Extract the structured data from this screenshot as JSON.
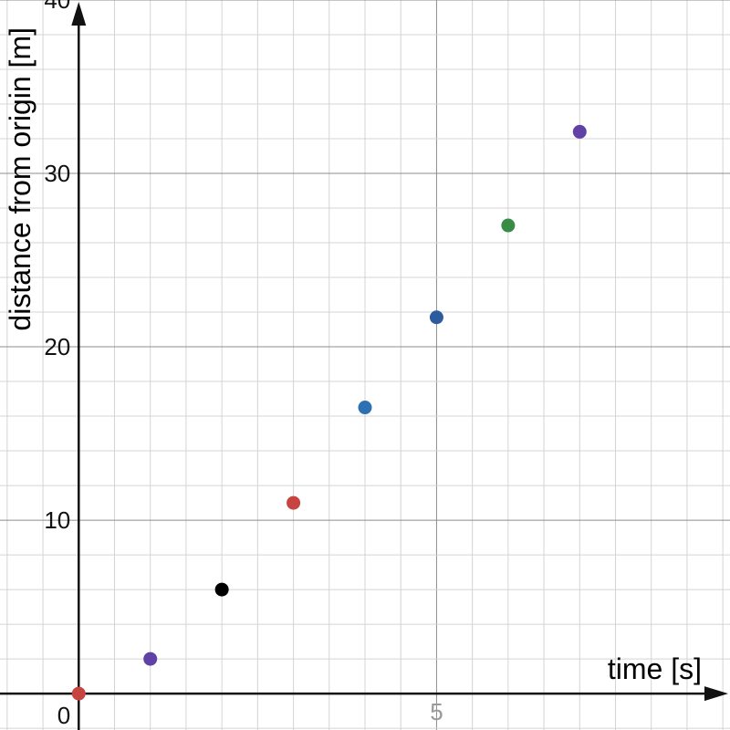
{
  "chart_data": {
    "type": "scatter",
    "title": "",
    "xlabel": "time [s]",
    "ylabel": "distance from origin [m]",
    "xlim": [
      -1.1,
      9.1
    ],
    "ylim": [
      -2.1,
      40
    ],
    "x_ticks": [
      {
        "value": 5,
        "label": "5"
      }
    ],
    "y_ticks": [
      {
        "value": 10,
        "label": "10"
      },
      {
        "value": 20,
        "label": "20"
      },
      {
        "value": 30,
        "label": "30"
      },
      {
        "value": 40,
        "label": "40"
      }
    ],
    "origin_label": "0",
    "grid": true,
    "points": [
      {
        "x": 0,
        "y": 0,
        "color": "#c74440"
      },
      {
        "x": 1,
        "y": 2,
        "color": "#6042a6"
      },
      {
        "x": 2,
        "y": 6,
        "color": "#000000"
      },
      {
        "x": 3,
        "y": 11,
        "color": "#c74440"
      },
      {
        "x": 4,
        "y": 16.5,
        "color": "#2d70b3"
      },
      {
        "x": 5,
        "y": 21.7,
        "color": "#2d5c9e"
      },
      {
        "x": 6,
        "y": 27,
        "color": "#388c46"
      },
      {
        "x": 7,
        "y": 32.4,
        "color": "#6042a6"
      }
    ]
  }
}
